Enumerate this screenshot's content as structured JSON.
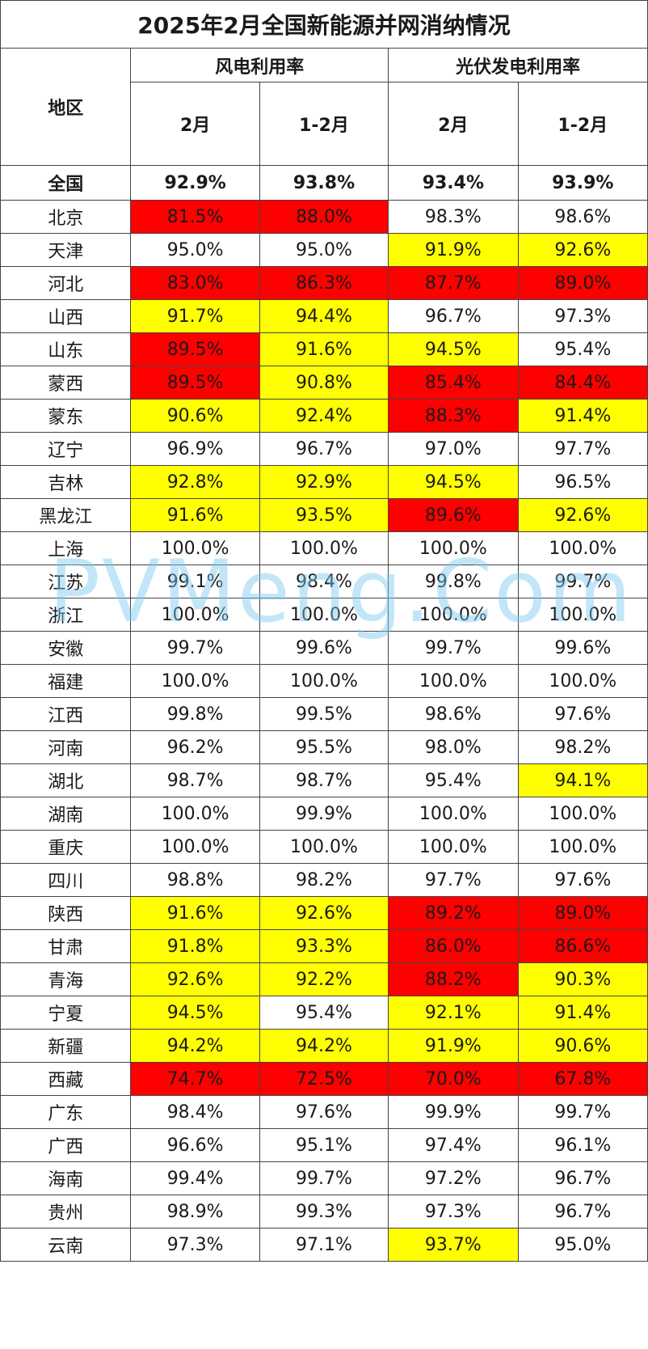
{
  "title": "2025年2月全国新能源并网消纳情况",
  "header": {
    "region": "地区",
    "wind": "风电利用率",
    "solar": "光伏发电利用率",
    "feb": "2月",
    "janfeb": "1-2月"
  },
  "watermark": "PVMeng.Com",
  "colors": {
    "red": "#ff0000",
    "yellow": "#ffff00"
  },
  "total": {
    "region": "全国",
    "values": [
      "92.9%",
      "93.8%",
      "93.4%",
      "93.9%"
    ]
  },
  "rows": [
    {
      "region": "北京",
      "values": [
        "81.5%",
        "88.0%",
        "98.3%",
        "98.6%"
      ],
      "hl": [
        "red",
        "red",
        "",
        ""
      ]
    },
    {
      "region": "天津",
      "values": [
        "95.0%",
        "95.0%",
        "91.9%",
        "92.6%"
      ],
      "hl": [
        "",
        "",
        "yellow",
        "yellow"
      ]
    },
    {
      "region": "河北",
      "values": [
        "83.0%",
        "86.3%",
        "87.7%",
        "89.0%"
      ],
      "hl": [
        "red",
        "red",
        "red",
        "red"
      ]
    },
    {
      "region": "山西",
      "values": [
        "91.7%",
        "94.4%",
        "96.7%",
        "97.3%"
      ],
      "hl": [
        "yellow",
        "yellow",
        "",
        ""
      ]
    },
    {
      "region": "山东",
      "values": [
        "89.5%",
        "91.6%",
        "94.5%",
        "95.4%"
      ],
      "hl": [
        "red",
        "yellow",
        "yellow",
        ""
      ]
    },
    {
      "region": "蒙西",
      "values": [
        "89.5%",
        "90.8%",
        "85.4%",
        "84.4%"
      ],
      "hl": [
        "red",
        "yellow",
        "red",
        "red"
      ]
    },
    {
      "region": "蒙东",
      "values": [
        "90.6%",
        "92.4%",
        "88.3%",
        "91.4%"
      ],
      "hl": [
        "yellow",
        "yellow",
        "red",
        "yellow"
      ]
    },
    {
      "region": "辽宁",
      "values": [
        "96.9%",
        "96.7%",
        "97.0%",
        "97.7%"
      ],
      "hl": [
        "",
        "",
        "",
        ""
      ]
    },
    {
      "region": "吉林",
      "values": [
        "92.8%",
        "92.9%",
        "94.5%",
        "96.5%"
      ],
      "hl": [
        "yellow",
        "yellow",
        "yellow",
        ""
      ]
    },
    {
      "region": "黑龙江",
      "values": [
        "91.6%",
        "93.5%",
        "89.6%",
        "92.6%"
      ],
      "hl": [
        "yellow",
        "yellow",
        "red",
        "yellow"
      ]
    },
    {
      "region": "上海",
      "values": [
        "100.0%",
        "100.0%",
        "100.0%",
        "100.0%"
      ],
      "hl": [
        "",
        "",
        "",
        ""
      ]
    },
    {
      "region": "江苏",
      "values": [
        "99.1%",
        "98.4%",
        "99.8%",
        "99.7%"
      ],
      "hl": [
        "",
        "",
        "",
        ""
      ]
    },
    {
      "region": "浙江",
      "values": [
        "100.0%",
        "100.0%",
        "100.0%",
        "100.0%"
      ],
      "hl": [
        "",
        "",
        "",
        ""
      ]
    },
    {
      "region": "安徽",
      "values": [
        "99.7%",
        "99.6%",
        "99.7%",
        "99.6%"
      ],
      "hl": [
        "",
        "",
        "",
        ""
      ]
    },
    {
      "region": "福建",
      "values": [
        "100.0%",
        "100.0%",
        "100.0%",
        "100.0%"
      ],
      "hl": [
        "",
        "",
        "",
        ""
      ]
    },
    {
      "region": "江西",
      "values": [
        "99.8%",
        "99.5%",
        "98.6%",
        "97.6%"
      ],
      "hl": [
        "",
        "",
        "",
        ""
      ]
    },
    {
      "region": "河南",
      "values": [
        "96.2%",
        "95.5%",
        "98.0%",
        "98.2%"
      ],
      "hl": [
        "",
        "",
        "",
        ""
      ]
    },
    {
      "region": "湖北",
      "values": [
        "98.7%",
        "98.7%",
        "95.4%",
        "94.1%"
      ],
      "hl": [
        "",
        "",
        "",
        "yellow"
      ]
    },
    {
      "region": "湖南",
      "values": [
        "100.0%",
        "99.9%",
        "100.0%",
        "100.0%"
      ],
      "hl": [
        "",
        "",
        "",
        ""
      ]
    },
    {
      "region": "重庆",
      "values": [
        "100.0%",
        "100.0%",
        "100.0%",
        "100.0%"
      ],
      "hl": [
        "",
        "",
        "",
        ""
      ]
    },
    {
      "region": "四川",
      "values": [
        "98.8%",
        "98.2%",
        "97.7%",
        "97.6%"
      ],
      "hl": [
        "",
        "",
        "",
        ""
      ]
    },
    {
      "region": "陕西",
      "values": [
        "91.6%",
        "92.6%",
        "89.2%",
        "89.0%"
      ],
      "hl": [
        "yellow",
        "yellow",
        "red",
        "red"
      ]
    },
    {
      "region": "甘肃",
      "values": [
        "91.8%",
        "93.3%",
        "86.0%",
        "86.6%"
      ],
      "hl": [
        "yellow",
        "yellow",
        "red",
        "red"
      ]
    },
    {
      "region": "青海",
      "values": [
        "92.6%",
        "92.2%",
        "88.2%",
        "90.3%"
      ],
      "hl": [
        "yellow",
        "yellow",
        "red",
        "yellow"
      ]
    },
    {
      "region": "宁夏",
      "values": [
        "94.5%",
        "95.4%",
        "92.1%",
        "91.4%"
      ],
      "hl": [
        "yellow",
        "",
        "yellow",
        "yellow"
      ]
    },
    {
      "region": "新疆",
      "values": [
        "94.2%",
        "94.2%",
        "91.9%",
        "90.6%"
      ],
      "hl": [
        "yellow",
        "yellow",
        "yellow",
        "yellow"
      ]
    },
    {
      "region": "西藏",
      "values": [
        "74.7%",
        "72.5%",
        "70.0%",
        "67.8%"
      ],
      "hl": [
        "red",
        "red",
        "red",
        "red"
      ]
    },
    {
      "region": "广东",
      "values": [
        "98.4%",
        "97.6%",
        "99.9%",
        "99.7%"
      ],
      "hl": [
        "",
        "",
        "",
        ""
      ]
    },
    {
      "region": "广西",
      "values": [
        "96.6%",
        "95.1%",
        "97.4%",
        "96.1%"
      ],
      "hl": [
        "",
        "",
        "",
        ""
      ]
    },
    {
      "region": "海南",
      "values": [
        "99.4%",
        "99.7%",
        "97.2%",
        "96.7%"
      ],
      "hl": [
        "",
        "",
        "",
        ""
      ]
    },
    {
      "region": "贵州",
      "values": [
        "98.9%",
        "99.3%",
        "97.3%",
        "96.7%"
      ],
      "hl": [
        "",
        "",
        "",
        ""
      ]
    },
    {
      "region": "云南",
      "values": [
        "97.3%",
        "97.1%",
        "93.7%",
        "95.0%"
      ],
      "hl": [
        "",
        "",
        "yellow",
        ""
      ]
    }
  ]
}
